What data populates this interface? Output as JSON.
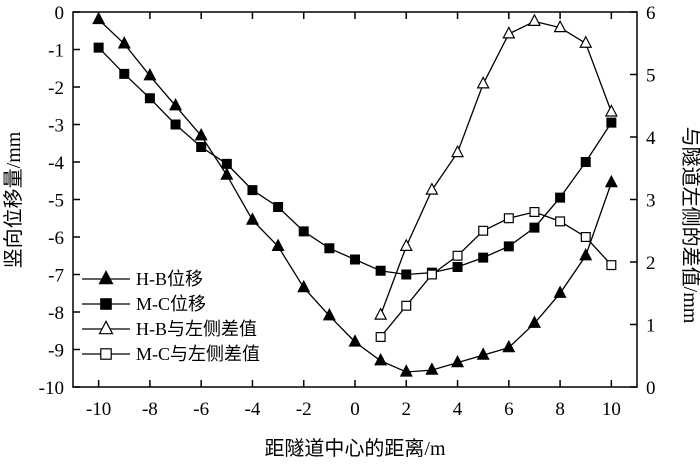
{
  "chart_data": {
    "type": "line",
    "xlabel": "距隧道中心的距离/m",
    "ylabel_left": "竖向位移量/mm",
    "ylabel_right": "与隧道左侧的差值/mm",
    "xlim": [
      -11,
      11
    ],
    "ylim_left": [
      -10,
      0
    ],
    "ylim_right": [
      0,
      6
    ],
    "x_ticks": [
      -10,
      -8,
      -6,
      -4,
      -2,
      0,
      2,
      4,
      6,
      8,
      10
    ],
    "y_left_ticks": [
      0,
      -1,
      -2,
      -3,
      -4,
      -5,
      -6,
      -7,
      -8,
      -9,
      -10
    ],
    "y_right_ticks": [
      0,
      1,
      2,
      3,
      4,
      5,
      6
    ],
    "grid": false,
    "legend_position": "bottom-left",
    "series": [
      {
        "name": "H-B位移",
        "axis": "left",
        "marker": "filled-triangle",
        "x": [
          -10,
          -9,
          -8,
          -7,
          -6,
          -5,
          -4,
          -3,
          -2,
          -1,
          0,
          1,
          2,
          3,
          4,
          5,
          6,
          7,
          8,
          9,
          10
        ],
        "y": [
          -0.2,
          -0.85,
          -1.7,
          -2.5,
          -3.3,
          -4.35,
          -5.55,
          -6.25,
          -7.35,
          -8.1,
          -8.8,
          -9.3,
          -9.6,
          -9.55,
          -9.35,
          -9.15,
          -8.95,
          -8.3,
          -7.5,
          -6.5,
          -4.55
        ]
      },
      {
        "name": "M-C位移",
        "axis": "left",
        "marker": "filled-square",
        "x": [
          -10,
          -9,
          -8,
          -7,
          -6,
          -5,
          -4,
          -3,
          -2,
          -1,
          0,
          1,
          2,
          3,
          4,
          5,
          6,
          7,
          8,
          9,
          10
        ],
        "y": [
          -0.95,
          -1.65,
          -2.3,
          -3.0,
          -3.6,
          -4.05,
          -4.75,
          -5.2,
          -5.85,
          -6.3,
          -6.6,
          -6.9,
          -7.0,
          -6.95,
          -6.8,
          -6.55,
          -6.25,
          -5.75,
          -4.95,
          -4.0,
          -2.95
        ]
      },
      {
        "name": "H-B与左侧差值",
        "axis": "right",
        "marker": "open-triangle",
        "x": [
          1,
          2,
          3,
          4,
          5,
          6,
          7,
          8,
          9,
          10
        ],
        "y": [
          1.15,
          2.25,
          3.15,
          3.75,
          4.85,
          5.65,
          5.85,
          5.75,
          5.5,
          4.4
        ]
      },
      {
        "name": "M-C与左侧差值",
        "axis": "right",
        "marker": "open-square",
        "x": [
          1,
          2,
          3,
          4,
          5,
          6,
          7,
          8,
          9,
          10
        ],
        "y": [
          0.8,
          1.3,
          1.8,
          2.1,
          2.5,
          2.7,
          2.8,
          2.65,
          2.4,
          1.95
        ]
      }
    ]
  }
}
